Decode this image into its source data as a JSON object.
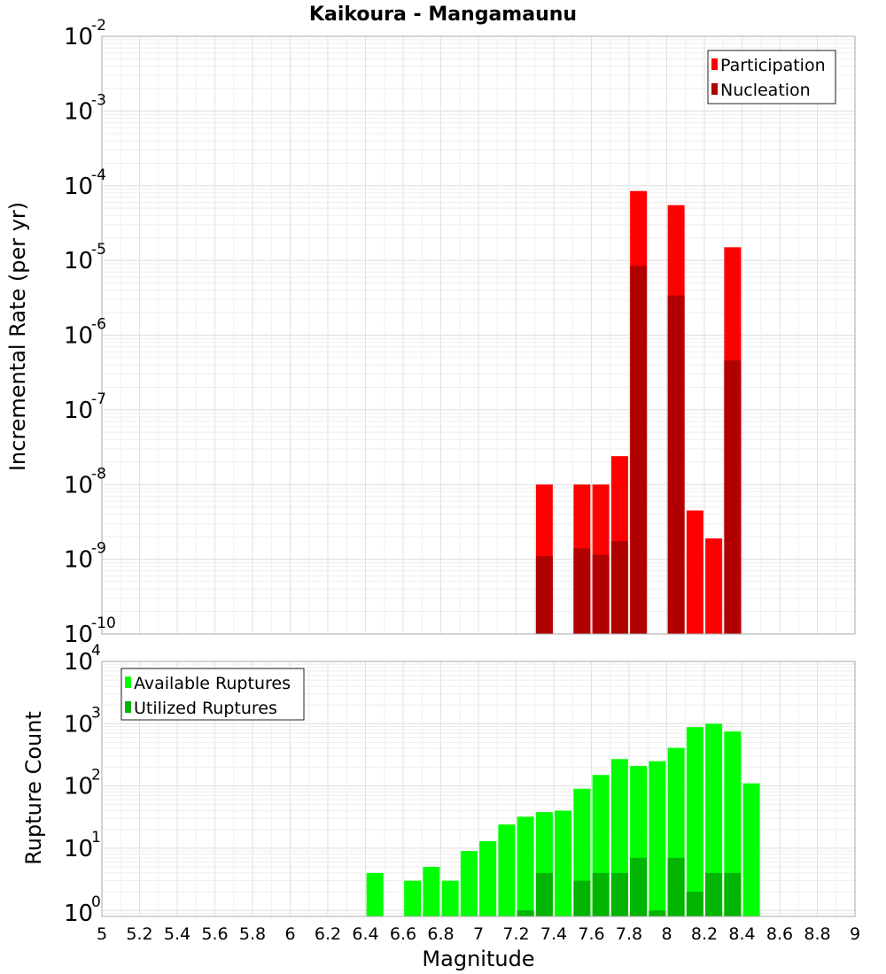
{
  "chart_data": [
    {
      "type": "bar",
      "title": "Kaikoura - Mangamaunu",
      "xlabel": "Magnitude",
      "ylabel": "Incremental Rate (per yr)",
      "yscale": "log",
      "ylim": [
        1e-10,
        0.01
      ],
      "xlim": [
        5,
        9
      ],
      "grid": true,
      "legend_position": "top-right",
      "y_tick_base": "10",
      "y_tick_exponents": [
        "-10",
        "-9",
        "-8",
        "-7",
        "-6",
        "-5",
        "-4",
        "-3",
        "-2"
      ],
      "x_ticks": [
        "5",
        "5.2",
        "5.4",
        "5.6",
        "5.8",
        "6",
        "6.2",
        "6.4",
        "6.6",
        "6.8",
        "7",
        "7.2",
        "7.4",
        "7.6",
        "7.8",
        "8",
        "8.2",
        "8.4",
        "8.6",
        "8.8",
        "9"
      ],
      "x": [
        7.35,
        7.55,
        7.65,
        7.75,
        7.85,
        8.05,
        8.15,
        8.25,
        8.35
      ],
      "series": [
        {
          "name": "Participation",
          "color": "#ff0000",
          "values": [
            1e-08,
            1e-08,
            1e-08,
            2.4e-08,
            8.5e-05,
            5.5e-05,
            4.5e-09,
            1.9e-09,
            1.5e-05
          ]
        },
        {
          "name": "Nucleation",
          "color": "#b00000",
          "values": [
            1.1e-09,
            1.4e-09,
            1.15e-09,
            1.75e-09,
            8.5e-06,
            3.4e-06,
            null,
            null,
            4.6e-07
          ]
        }
      ]
    },
    {
      "type": "bar",
      "xlabel": "Magnitude",
      "ylabel": "Rupture Count",
      "yscale": "log",
      "ylim": [
        0.8,
        10000
      ],
      "xlim": [
        5,
        9
      ],
      "grid": true,
      "legend_position": "top-left",
      "y_tick_base": "10",
      "y_tick_exponents": [
        "0",
        "1",
        "2",
        "3",
        "4"
      ],
      "x_ticks": [
        "5",
        "5.2",
        "5.4",
        "5.6",
        "5.8",
        "6",
        "6.2",
        "6.4",
        "6.6",
        "6.8",
        "7",
        "7.2",
        "7.4",
        "7.6",
        "7.8",
        "8",
        "8.2",
        "8.4",
        "8.6",
        "8.8",
        "9"
      ],
      "x": [
        6.45,
        6.65,
        6.75,
        6.85,
        6.95,
        7.05,
        7.15,
        7.25,
        7.35,
        7.45,
        7.55,
        7.65,
        7.75,
        7.85,
        7.95,
        8.05,
        8.15,
        8.25,
        8.35,
        8.45
      ],
      "series": [
        {
          "name": "Available Ruptures",
          "color": "#00ff00",
          "values": [
            4,
            3,
            5,
            3,
            9,
            13,
            24,
            32,
            38,
            40,
            90,
            150,
            270,
            210,
            250,
            410,
            880,
            1000,
            750,
            110
          ]
        },
        {
          "name": "Utilized Ruptures",
          "color": "#00b400",
          "values": [
            null,
            null,
            null,
            null,
            null,
            null,
            null,
            1,
            4,
            null,
            3,
            4,
            4,
            7,
            1,
            7,
            2,
            4,
            4,
            null
          ]
        }
      ]
    }
  ]
}
